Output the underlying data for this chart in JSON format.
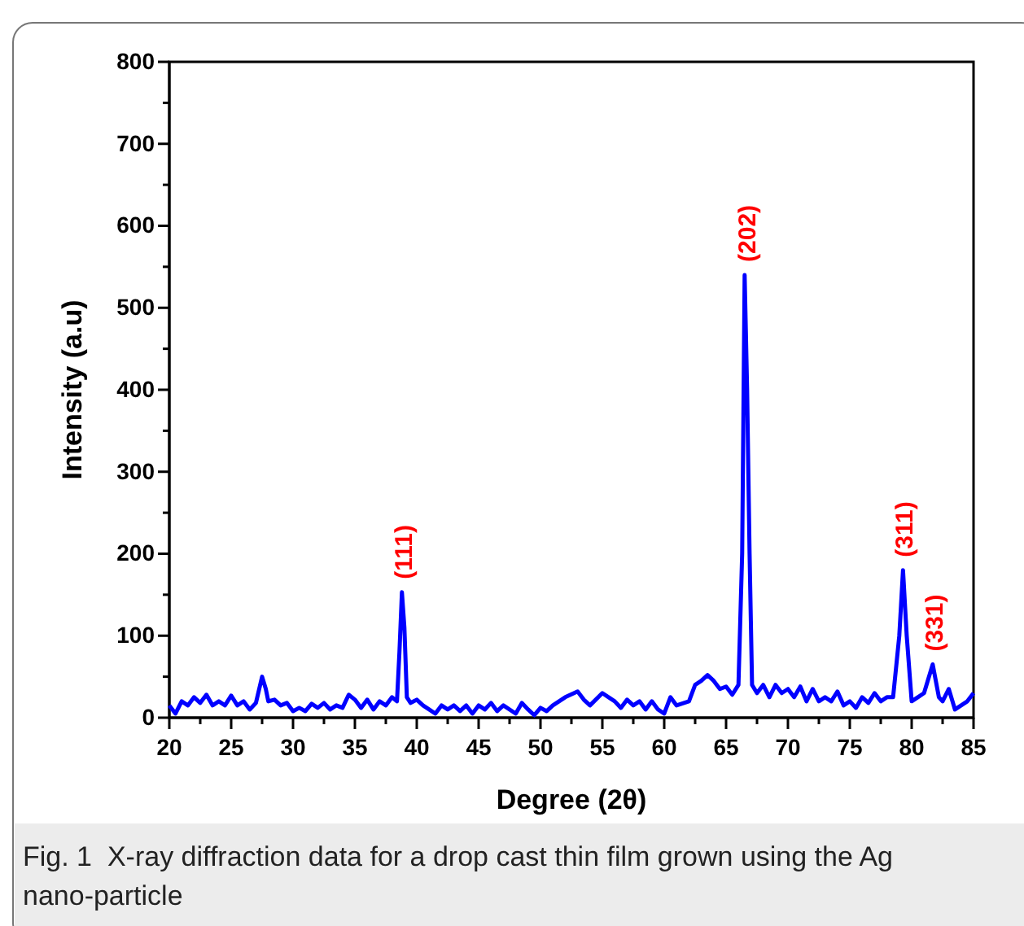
{
  "chart_data": {
    "type": "line",
    "xlabel": "Degree (2θ)",
    "ylabel": "Intensity (a.u)",
    "xlim": [
      20,
      85
    ],
    "ylim": [
      0,
      800
    ],
    "xticks": [
      20,
      {
        "value": 22.5,
        "label": null
      },
      25,
      {
        "value": 27.5,
        "label": null
      },
      30,
      {
        "value": 32.5,
        "label": null
      },
      35,
      {
        "value": 37.5,
        "label": null
      },
      40,
      {
        "value": 42.5,
        "label": null
      },
      45,
      {
        "value": 47.5,
        "label": null
      },
      50,
      {
        "value": 52.5,
        "label": null
      },
      55,
      {
        "value": 57.5,
        "label": null
      },
      60,
      {
        "value": 62.5,
        "label": null
      },
      65,
      {
        "value": 67.5,
        "label": null
      },
      70,
      {
        "value": 72.5,
        "label": null
      },
      75,
      {
        "value": 77.5,
        "label": null
      },
      80,
      {
        "value": 82.5,
        "label": null
      },
      85
    ],
    "yticks": [
      0,
      {
        "value": 50,
        "label": null
      },
      100,
      {
        "value": 150,
        "label": null
      },
      200,
      {
        "value": 250,
        "label": null
      },
      300,
      {
        "value": 350,
        "label": null
      },
      400,
      {
        "value": 450,
        "label": null
      },
      500,
      {
        "value": 550,
        "label": null
      },
      600,
      {
        "value": 650,
        "label": null
      },
      700,
      {
        "value": 750,
        "label": null
      },
      800
    ],
    "grid": false,
    "marker": "none",
    "line_style": "solid",
    "series": [
      {
        "color": "#0000ff",
        "x": [
          20,
          20.5,
          21,
          21.5,
          22,
          22.5,
          23,
          23.5,
          24,
          24.5,
          25,
          25.5,
          26,
          26.5,
          27,
          27.5,
          27.8,
          28,
          28.5,
          29,
          29.5,
          30,
          30.5,
          31,
          31.5,
          32,
          32.5,
          33,
          33.5,
          34,
          34.5,
          35,
          35.5,
          36,
          36.5,
          37,
          37.5,
          38,
          38.4,
          38.6,
          38.8,
          39,
          39.2,
          39.5,
          40,
          40.5,
          41,
          41.5,
          42,
          42.5,
          43,
          43.5,
          44,
          44.5,
          45,
          45.5,
          46,
          46.5,
          47,
          48,
          48.5,
          49,
          49.5,
          50,
          50.5,
          51,
          52,
          53,
          53.5,
          54,
          55,
          55.5,
          56,
          56.5,
          57,
          57.5,
          58,
          58.5,
          59,
          59.5,
          60,
          60.5,
          61,
          62,
          62.5,
          63,
          63.5,
          64,
          64.5,
          65,
          65.5,
          66,
          66.3,
          66.5,
          66.7,
          66.9,
          67.1,
          67.5,
          68,
          68.5,
          69,
          69.5,
          70,
          70.5,
          71,
          71.5,
          72,
          72.5,
          73,
          73.5,
          74,
          74.5,
          75,
          75.5,
          76,
          76.5,
          77,
          77.5,
          78,
          78.5,
          79,
          79.3,
          79.6,
          80,
          80.5,
          81,
          81.7,
          82.2,
          82.5,
          83,
          83.5,
          84,
          84.5,
          85
        ],
        "values": [
          15,
          5,
          20,
          15,
          25,
          18,
          28,
          15,
          20,
          15,
          27,
          15,
          20,
          10,
          18,
          50,
          35,
          20,
          22,
          15,
          18,
          8,
          12,
          8,
          17,
          12,
          18,
          10,
          15,
          12,
          28,
          22,
          12,
          22,
          10,
          20,
          15,
          25,
          20,
          80,
          153,
          110,
          25,
          18,
          22,
          15,
          10,
          5,
          15,
          10,
          15,
          8,
          15,
          5,
          15,
          10,
          18,
          8,
          15,
          5,
          18,
          10,
          3,
          12,
          8,
          15,
          25,
          32,
          22,
          15,
          30,
          25,
          20,
          12,
          22,
          15,
          20,
          10,
          20,
          10,
          5,
          25,
          15,
          20,
          40,
          45,
          52,
          45,
          35,
          38,
          28,
          40,
          200,
          540,
          400,
          200,
          40,
          30,
          40,
          25,
          40,
          30,
          35,
          25,
          38,
          20,
          35,
          20,
          25,
          20,
          32,
          15,
          20,
          12,
          25,
          18,
          30,
          20,
          25,
          25,
          100,
          180,
          100,
          20,
          25,
          30,
          65,
          25,
          20,
          35,
          10,
          15,
          20,
          30
        ]
      }
    ],
    "annotations": [
      {
        "text": "(111)",
        "x": 38.8,
        "y": 153
      },
      {
        "text": "(202)",
        "x": 66.6,
        "y": 540
      },
      {
        "text": "(311)",
        "x": 79.3,
        "y": 180
      },
      {
        "text": "(331)",
        "x": 81.7,
        "y": 65
      },
      "Fig. 1  X-ray diffraction data for a drop cast thin film grown using the Ag nano-particle"
    ]
  }
}
